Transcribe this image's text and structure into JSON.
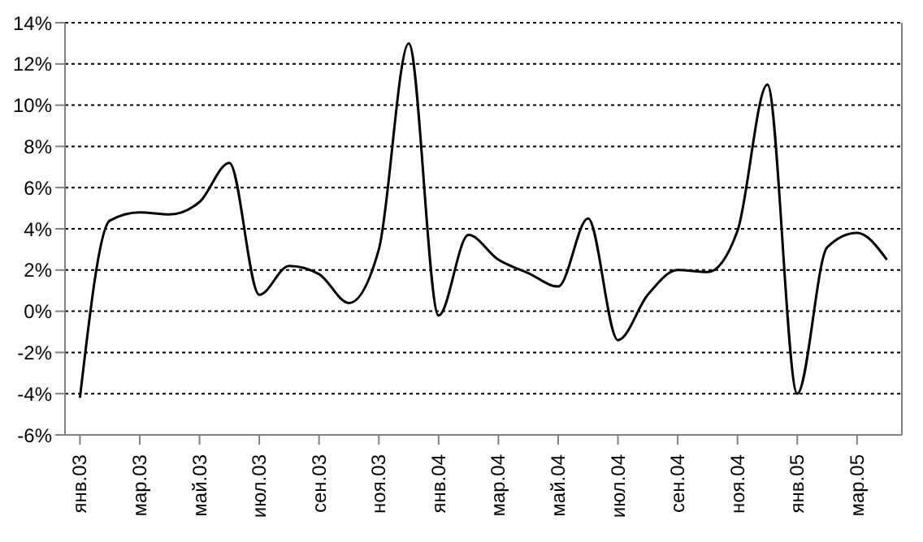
{
  "chart_data": {
    "type": "line",
    "categories": [
      "янв.03",
      null,
      "мар.03",
      null,
      "май.03",
      null,
      "июл.03",
      null,
      "сен.03",
      null,
      "ноя.03",
      null,
      "янв.04",
      null,
      "мар.04",
      null,
      "май.04",
      null,
      "июл.04",
      null,
      "сен.04",
      null,
      "ноя.04",
      null,
      "янв.05",
      null,
      "мар.05",
      null
    ],
    "series": [
      {
        "color": "#000000",
        "values": [
          -4.2,
          4.4,
          4.8,
          4.7,
          5.3,
          7.2,
          0.8,
          2.2,
          1.8,
          0.4,
          3.0,
          13.0,
          -0.2,
          3.7,
          2.5,
          1.85,
          1.2,
          4.5,
          -1.4,
          0.8,
          2.0,
          1.9,
          3.9,
          11.0,
          -4.0,
          3.1,
          3.8,
          2.5
        ]
      }
    ],
    "ylim": [
      -6,
      14
    ],
    "yticks": [
      {
        "value": -6,
        "label": "-6%"
      },
      {
        "value": -4,
        "label": "-4%"
      },
      {
        "value": -2,
        "label": "-2%"
      },
      {
        "value": 0,
        "label": "0%"
      },
      {
        "value": 2,
        "label": "2%"
      },
      {
        "value": 4,
        "label": "4%"
      },
      {
        "value": 6,
        "label": "6%"
      },
      {
        "value": 8,
        "label": "8%"
      },
      {
        "value": 10,
        "label": "10%"
      },
      {
        "value": 12,
        "label": "12%"
      },
      {
        "value": 14,
        "label": "14%"
      }
    ],
    "grid": "y",
    "legend": false,
    "marker": "none",
    "line_style": "solid"
  }
}
